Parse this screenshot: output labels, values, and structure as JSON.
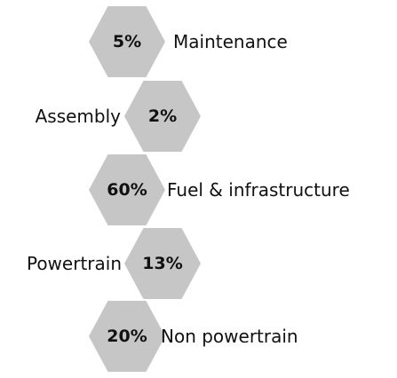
{
  "items": [
    {
      "value": "5%",
      "label": "Maintenance"
    },
    {
      "value": "2%",
      "label": "Assembly"
    },
    {
      "value": "60%",
      "label": "Fuel & infrastructure"
    },
    {
      "value": "13%",
      "label": "Powertrain"
    },
    {
      "value": "20%",
      "label": "Non powertrain"
    }
  ]
}
